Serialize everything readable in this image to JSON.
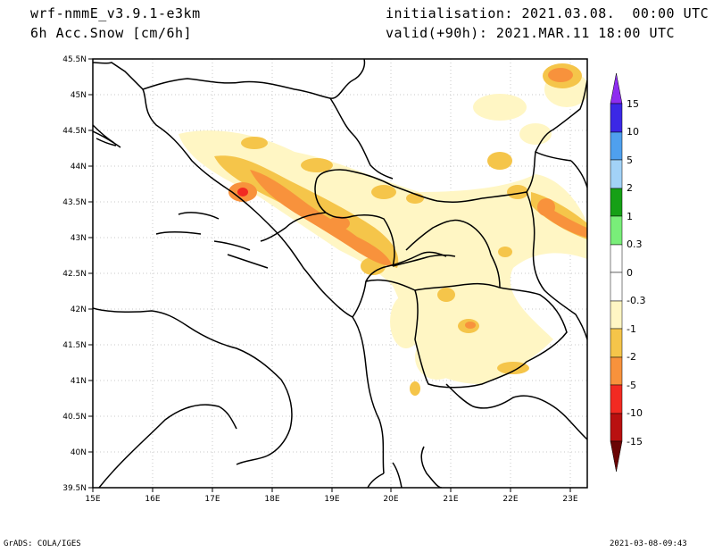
{
  "header": {
    "model": "wrf-nmmE_v3.9.1-e3km",
    "field": "6h Acc.Snow [cm/6h]",
    "init": "initialisation: 2021.03.08.  00:00 UTC",
    "valid": "valid(+90h): 2021.MAR.11 18:00 UTC"
  },
  "footer": {
    "credit": "GrADS: COLA/IGES",
    "timestamp": "2021-03-08-09:43"
  },
  "map": {
    "lat_labels": [
      "45.5N",
      "45N",
      "44.5N",
      "44N",
      "43.5N",
      "43N",
      "42.5N",
      "42N",
      "41.5N",
      "41N",
      "40.5N",
      "40N",
      "39.5N"
    ],
    "lon_labels": [
      "15E",
      "16E",
      "17E",
      "18E",
      "19E",
      "20E",
      "21E",
      "22E",
      "23E"
    ]
  },
  "colorbar": {
    "labels": [
      "15",
      "10",
      "5",
      "2",
      "1",
      "0.3",
      "0",
      "-0.3",
      "-1",
      "-2",
      "-5",
      "-10",
      "-15"
    ],
    "colors": [
      "#3b28e6",
      "#4fa0ee",
      "#a2d2f7",
      "#16a016",
      "#79ee79",
      "#ffffff",
      "#ffffff",
      "#fff6c4",
      "#f5c54a",
      "#f8923c",
      "#f22a22",
      "#b91010",
      "#7d0606"
    ],
    "top_arrow_color": "#8e2df0",
    "bottom_arrow_color": "#6a0505"
  }
}
